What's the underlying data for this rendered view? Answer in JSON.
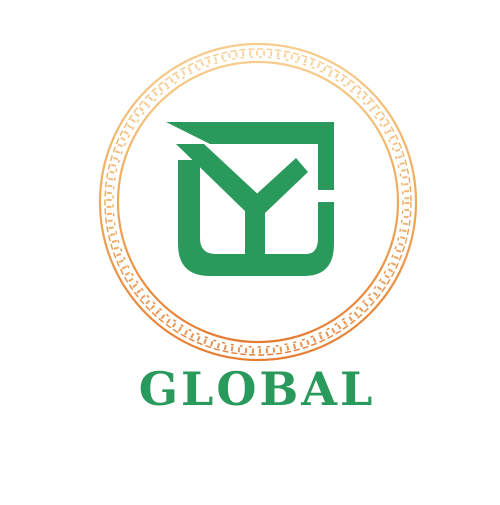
{
  "brand": {
    "wordmark": "GLOBAL",
    "monogram_icon": "yc-monogram-icon",
    "border_icon": "greek-key-ring-icon"
  },
  "colors": {
    "brand_green": "#2a9a5c",
    "ring_gold": "#e9a246",
    "ring_orange": "#e8823a",
    "ring_light": "#f6c98c",
    "background": "#ffffff"
  }
}
